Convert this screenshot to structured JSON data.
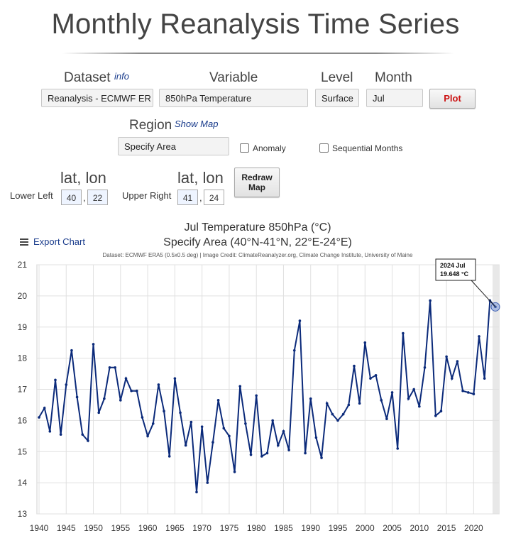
{
  "page": {
    "title": "Monthly Reanalysis Time Series"
  },
  "form": {
    "dataset_label": "Dataset",
    "dataset_info": "info",
    "dataset_value": "Reanalysis - ECMWF ER",
    "variable_label": "Variable",
    "variable_value": "850hPa Temperature",
    "level_label": "Level",
    "level_value": "Surface",
    "month_label": "Month",
    "month_value": "Jul",
    "plot_label": "Plot",
    "region_label": "Region",
    "show_map_label": "Show Map",
    "region_value": "Specify Area",
    "anomaly_label": "Anomaly",
    "sequential_label": "Sequential Months",
    "latlon_label": "lat, lon",
    "lower_left_label": "Lower Left",
    "lower_left_lat": "40",
    "lower_left_lon": "22",
    "upper_right_label": "Upper Right",
    "upper_right_lat": "41",
    "upper_right_lon": "24",
    "comma": ",",
    "redraw_line1": "Redraw",
    "redraw_line2": "Map"
  },
  "export_label": "Export Chart",
  "colors": {
    "series": "#0b2a7a",
    "plot_label": "#cc1111",
    "link": "#1a3c8c"
  },
  "icons": {
    "export": "hamburger-menu-icon"
  },
  "chart_data": {
    "type": "line",
    "title": "Jul Temperature 850hPa (°C)",
    "subtitle": "Specify Area (40°N-41°N, 22°E-24°E)",
    "credits": "Dataset: ECMWF ERA5 (0.5x0.5 deg) | Image Credit: ClimateReanalyzer.org, Climate Change Institute, University of Maine",
    "xlabel": "",
    "ylabel": "",
    "xlim": [
      1940,
      2024
    ],
    "ylim": [
      13,
      21
    ],
    "xticks": [
      1940,
      1945,
      1950,
      1955,
      1960,
      1965,
      1970,
      1975,
      1980,
      1985,
      1990,
      1995,
      2000,
      2005,
      2010,
      2015,
      2020
    ],
    "yticks": [
      13,
      14,
      15,
      16,
      17,
      18,
      19,
      20,
      21
    ],
    "grid": true,
    "tooltip": {
      "x": 2024,
      "line1": "2024 Jul",
      "line2": "19.648 °C"
    },
    "series": [
      {
        "x": [
          1940,
          1941,
          1942,
          1943,
          1944,
          1945,
          1946,
          1947,
          1948,
          1949,
          1950,
          1951,
          1952,
          1953,
          1954,
          1955,
          1956,
          1957,
          1958,
          1959,
          1960,
          1961,
          1962,
          1963,
          1964,
          1965,
          1966,
          1967,
          1968,
          1969,
          1970,
          1971,
          1972,
          1973,
          1974,
          1975,
          1976,
          1977,
          1978,
          1979,
          1980,
          1981,
          1982,
          1983,
          1984,
          1985,
          1986,
          1987,
          1988,
          1989,
          1990,
          1991,
          1992,
          1993,
          1994,
          1995,
          1996,
          1997,
          1998,
          1999,
          2000,
          2001,
          2002,
          2003,
          2004,
          2005,
          2006,
          2007,
          2008,
          2009,
          2010,
          2011,
          2012,
          2013,
          2014,
          2015,
          2016,
          2017,
          2018,
          2019,
          2020,
          2021,
          2022,
          2023,
          2024
        ],
        "values": [
          16.1,
          16.4,
          15.65,
          17.3,
          15.55,
          17.15,
          18.25,
          16.75,
          15.55,
          15.35,
          18.45,
          16.25,
          16.7,
          17.7,
          17.7,
          16.65,
          17.35,
          16.95,
          16.95,
          16.1,
          15.5,
          15.9,
          17.15,
          16.3,
          14.85,
          17.35,
          16.25,
          15.2,
          15.95,
          13.7,
          15.8,
          14.0,
          15.3,
          16.65,
          15.75,
          15.5,
          14.35,
          17.1,
          15.9,
          14.9,
          16.8,
          14.85,
          14.95,
          16.0,
          15.2,
          15.65,
          15.05,
          18.25,
          19.2,
          14.95,
          16.7,
          15.45,
          14.8,
          16.55,
          16.2,
          16.0,
          16.2,
          16.5,
          17.75,
          16.55,
          18.5,
          17.35,
          17.45,
          16.65,
          16.05,
          16.9,
          15.1,
          18.8,
          16.7,
          17.0,
          16.45,
          17.7,
          19.85,
          16.15,
          16.3,
          18.05,
          17.35,
          17.9,
          16.95,
          16.9,
          16.85,
          18.7,
          17.35,
          19.85,
          19.648
        ]
      }
    ]
  }
}
